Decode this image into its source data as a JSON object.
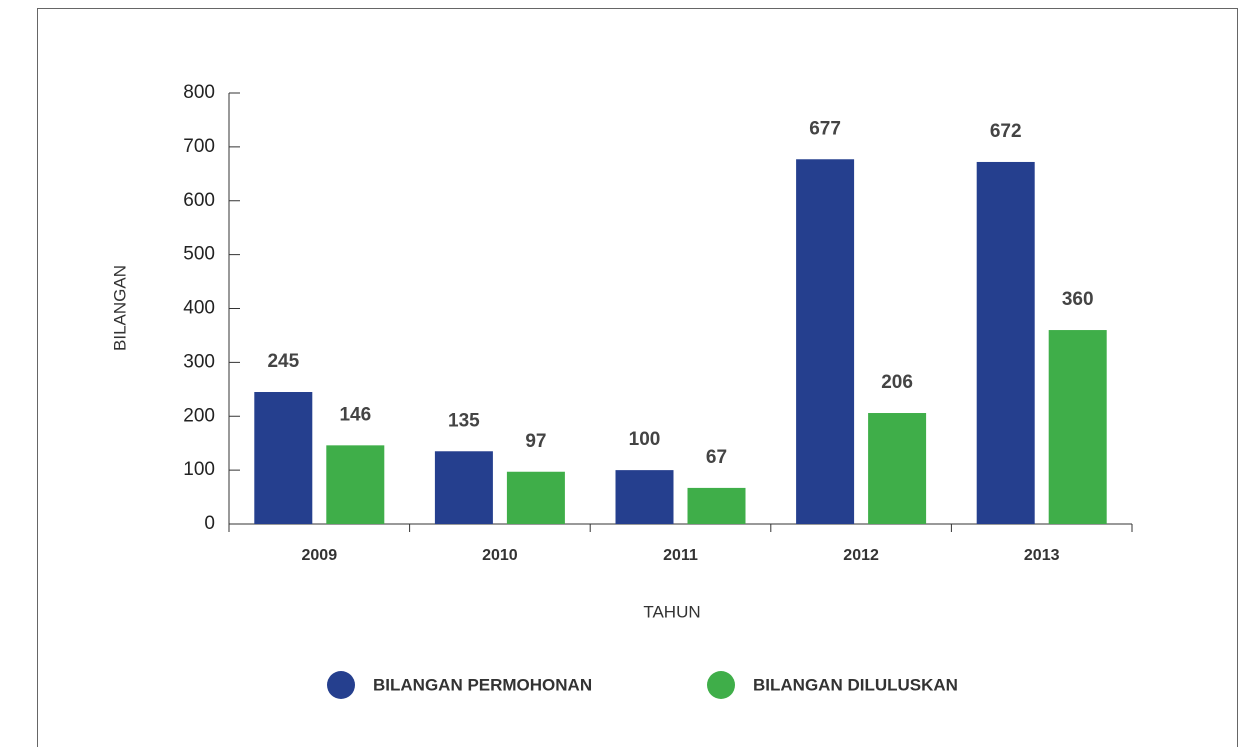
{
  "chart_data": {
    "type": "bar",
    "categories": [
      "2009",
      "2010",
      "2011",
      "2012",
      "2013"
    ],
    "series": [
      {
        "name": "BILANGAN PERMOHONAN",
        "color": "#253f8e",
        "values": [
          245,
          135,
          100,
          677,
          672
        ]
      },
      {
        "name": "BILANGAN DILULUSKAN",
        "color": "#3fae49",
        "values": [
          146,
          97,
          67,
          206,
          360
        ]
      }
    ],
    "x_label": "TAHUN",
    "y_label": "BILANGAN",
    "ylim": [
      0,
      800
    ],
    "yticks": [
      0,
      100,
      200,
      300,
      400,
      500,
      600,
      700,
      800
    ],
    "legend": "bottom"
  }
}
